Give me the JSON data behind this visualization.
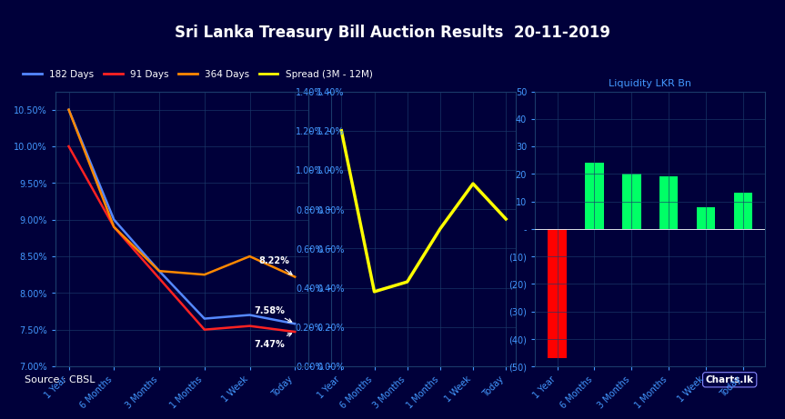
{
  "title": "Sri Lanka Treasury Bill Auction Results  20-11-2019",
  "title_color": "white",
  "bg_color": "#00003A",
  "header_bg": "#00008B",
  "categories": [
    "1 Year",
    "6 Months",
    "3 Months",
    "1 Months",
    "1 Week",
    "Today"
  ],
  "line_182": [
    10.5,
    9.0,
    8.3,
    7.65,
    7.7,
    7.58
  ],
  "line_91": [
    10.0,
    8.9,
    8.2,
    7.5,
    7.55,
    7.47
  ],
  "line_364": [
    10.5,
    8.9,
    8.3,
    8.25,
    8.5,
    8.22
  ],
  "spread": [
    1.2,
    0.38,
    0.43,
    0.7,
    0.93,
    0.75
  ],
  "liquidity": [
    -47,
    24,
    20,
    19,
    8,
    13
  ],
  "line_182_color": "#5588FF",
  "line_91_color": "#FF2222",
  "line_364_color": "#FF8800",
  "spread_color": "#FFFF00",
  "bar_colors_liq": [
    "#FF0000",
    "#00FF66",
    "#00FF66",
    "#00FF66",
    "#00FF66",
    "#00FF66"
  ],
  "left_ylim": [
    7.0,
    10.75
  ],
  "left_yticks": [
    7.0,
    7.5,
    8.0,
    8.5,
    9.0,
    9.5,
    10.0,
    10.5
  ],
  "right_ylim": [
    0.0,
    1.4
  ],
  "right_yticks": [
    0.0,
    0.2,
    0.4,
    0.6,
    0.8,
    1.0,
    1.2,
    1.4
  ],
  "liq_ylim": [
    -50,
    50
  ],
  "liq_yticks": [
    -50,
    -40,
    -30,
    -20,
    -10,
    0,
    10,
    20,
    30,
    40,
    50
  ],
  "source": "Source : CBSL",
  "label_182": "182 Days",
  "label_91": "91 Days",
  "label_364": "364 Days",
  "label_spread": "Spread (3M - 12M)",
  "label_liq": "Liquidity LKR Bn",
  "annot_364": "8.22%",
  "annot_182": "7.58%",
  "annot_91": "7.47%",
  "grid_color": "#1A3A6A",
  "tick_color": "#4499FF",
  "axis_label_color": "#4499FF"
}
